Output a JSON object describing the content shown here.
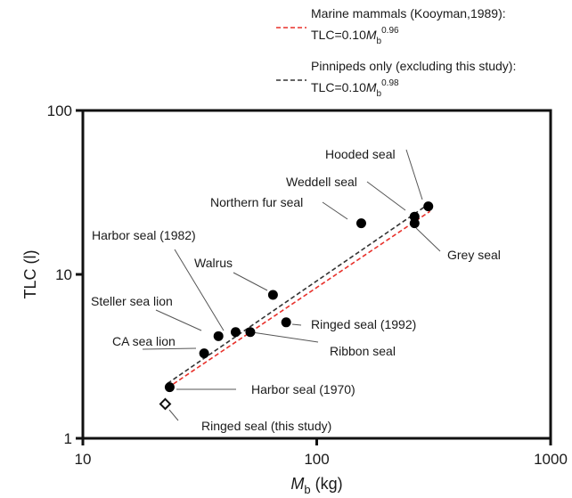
{
  "chart_data": {
    "type": "scatter",
    "x_scale": "log",
    "y_scale": "log",
    "xlim": [
      10,
      1000
    ],
    "ylim": [
      1,
      100
    ],
    "x_ticks": [
      10,
      100,
      1000
    ],
    "y_ticks": [
      1,
      10,
      100
    ],
    "x_tick_labels": [
      "10",
      "100",
      "1000"
    ],
    "y_tick_labels": [
      "1",
      "10",
      "100"
    ],
    "xlabel": {
      "main": "M",
      "sub": "b",
      "rest": " (kg)"
    },
    "ylabel": "TLC (l)",
    "grid": false,
    "legend_position": "top-right",
    "lines": [
      {
        "legend_line1": "Marine mammals (Kooyman,1989):",
        "legend_line2": {
          "pre": "TLC=0.10",
          "var": "M",
          "sub": "b",
          "sup": "0.96"
        },
        "style": "dashed",
        "color": "#e8302a",
        "coefficient": 0.1,
        "exponent": 0.96,
        "x_range": [
          23,
          305
        ]
      },
      {
        "legend_line1": "Pinnipeds only (excluding this study):",
        "legend_line2": {
          "pre": "TLC=0.10",
          "var": "M",
          "sub": "b",
          "sup": "0.98"
        },
        "style": "dashed",
        "color": "#333333",
        "coefficient": 0.1,
        "exponent": 0.98,
        "x_range": [
          23,
          305
        ]
      }
    ],
    "points": [
      {
        "label": "Harbor seal (1970)",
        "x": 23.5,
        "y": 2.05,
        "marker": "filled",
        "label_side": "right"
      },
      {
        "label": "Ringed seal (this study)",
        "x": 22.5,
        "y": 1.62,
        "marker": "open-diamond",
        "label_side": "right"
      },
      {
        "label": "CA sea lion",
        "x": 33,
        "y": 3.3,
        "marker": "filled",
        "label_side": "left"
      },
      {
        "label": "Steller sea lion",
        "x": 38,
        "y": 4.2,
        "marker": "filled",
        "label_side": "left"
      },
      {
        "label": "Harbor seal (1982)",
        "x": 45,
        "y": 4.45,
        "marker": "filled",
        "label_side": "left"
      },
      {
        "label": "Ribbon seal",
        "x": 52,
        "y": 4.45,
        "marker": "filled",
        "label_side": "right"
      },
      {
        "label": "Walrus",
        "x": 65,
        "y": 7.5,
        "marker": "filled",
        "label_side": "left"
      },
      {
        "label": "Ringed seal (1992)",
        "x": 74,
        "y": 5.1,
        "marker": "filled",
        "label_side": "right"
      },
      {
        "label": "Northern fur seal",
        "x": 155,
        "y": 20.5,
        "marker": "filled",
        "label_side": "left"
      },
      {
        "label": "Weddell seal",
        "x": 262,
        "y": 22.5,
        "marker": "filled",
        "label_side": "left"
      },
      {
        "label": "Grey seal",
        "x": 262,
        "y": 20.5,
        "marker": "filled",
        "label_side": "right"
      },
      {
        "label": "Hooded seal",
        "x": 300,
        "y": 26,
        "marker": "filled",
        "label_side": "left"
      }
    ]
  }
}
